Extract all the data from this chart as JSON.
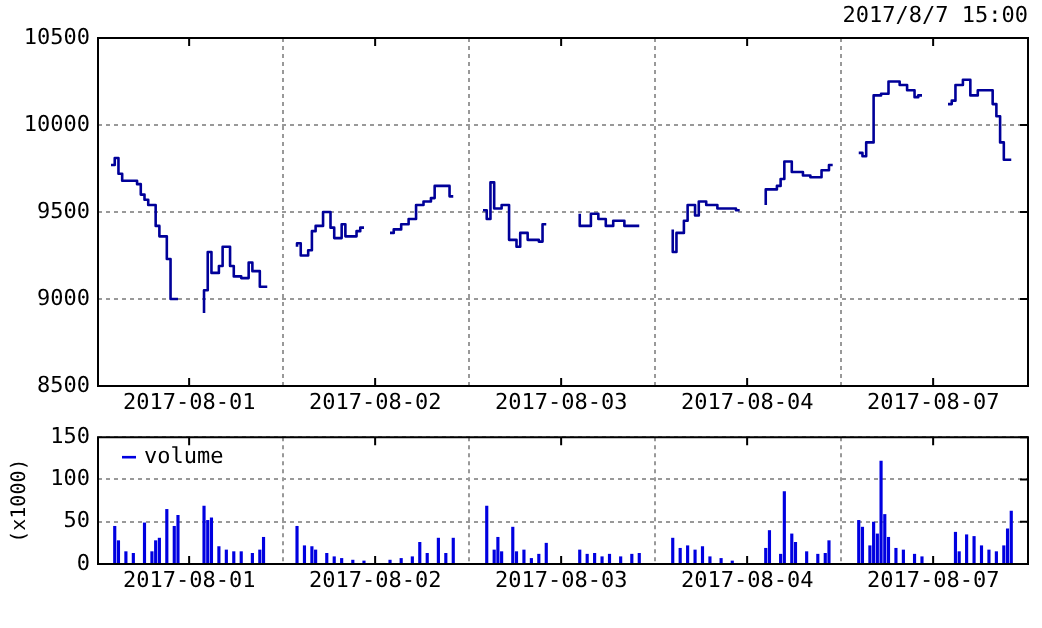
{
  "chart_data": [
    {
      "type": "step",
      "annotations": [
        "2017/8/7 15:00"
      ],
      "ylim": [
        8500,
        10500
      ],
      "yticks": [
        8500,
        9000,
        9500,
        10000,
        10500
      ],
      "grid": true,
      "marker": "none",
      "line_style": "solid",
      "categories": [
        null,
        null,
        null,
        null,
        null,
        null,
        null,
        null,
        null,
        null,
        null,
        null,
        null,
        null,
        null,
        null,
        null,
        null,
        null,
        null,
        null,
        null,
        null,
        null,
        "2017-08-01",
        null,
        null,
        null,
        null,
        null,
        null,
        null,
        null,
        null,
        null,
        null,
        null,
        null,
        null,
        null,
        null,
        null,
        null,
        null,
        null,
        null,
        null,
        null,
        null,
        null,
        null,
        null,
        null,
        null,
        null,
        null,
        null,
        null,
        null,
        null,
        null,
        null,
        null,
        null,
        null,
        null,
        null,
        null,
        null,
        null,
        null,
        null,
        null,
        null,
        "2017-08-02",
        null,
        null,
        null,
        null,
        null,
        null,
        null,
        null,
        null,
        null,
        null,
        null,
        null,
        null,
        null,
        null,
        null,
        null,
        null,
        null,
        null,
        null,
        null,
        null,
        null,
        null,
        null,
        null,
        null,
        null,
        null,
        null,
        null,
        null,
        null,
        null,
        null,
        null,
        null,
        null,
        null,
        null,
        null,
        null,
        null,
        null,
        null,
        null,
        null,
        "2017-08-03",
        null,
        null,
        null,
        null,
        null,
        null,
        null,
        null,
        null,
        null,
        null,
        null,
        null,
        null,
        null,
        null,
        null,
        null,
        null,
        null,
        null,
        null,
        null,
        null,
        null,
        null,
        null,
        null,
        null,
        null,
        null,
        null,
        null,
        null,
        null,
        null,
        null,
        null,
        null,
        null,
        null,
        null,
        null,
        null,
        null,
        null,
        null,
        null,
        null,
        "2017-08-04",
        null,
        null,
        null,
        null,
        null,
        null,
        null,
        null,
        null,
        null,
        null,
        null,
        null,
        null,
        null,
        null,
        null,
        null,
        null,
        null,
        null,
        null,
        null,
        null,
        null,
        null,
        null,
        null,
        null,
        null,
        null,
        null,
        null,
        null,
        null,
        null,
        null,
        null,
        null,
        null,
        null,
        null,
        null,
        null,
        null,
        null,
        null,
        null,
        null,
        "2017-08-07",
        null,
        null,
        null,
        null,
        null,
        null,
        null,
        null,
        null,
        null,
        null,
        null,
        null,
        null,
        null,
        null,
        null,
        null,
        null,
        null,
        null,
        null,
        null,
        null,
        null
      ],
      "series": [
        {
          "color": "#000099",
          "values": [
            null,
            null,
            null,
            9770,
            9770,
            9810,
            9720,
            9680,
            9680,
            9680,
            9680,
            9660,
            9600,
            9570,
            9540,
            9540,
            9420,
            9360,
            9360,
            9230,
            9000,
            9000,
            null,
            null,
            null,
            null,
            null,
            null,
            8920,
            9050,
            9270,
            9150,
            9150,
            9190,
            9300,
            9300,
            9190,
            9130,
            9130,
            9120,
            9120,
            9210,
            9160,
            9160,
            9070,
            9070,
            null,
            null,
            null,
            null,
            null,
            null,
            null,
            9300,
            9320,
            9250,
            9250,
            9280,
            9390,
            9420,
            9420,
            9500,
            9500,
            9410,
            9350,
            9350,
            9430,
            9360,
            9360,
            9360,
            9390,
            9410,
            null,
            null,
            null,
            null,
            null,
            null,
            9380,
            9380,
            9400,
            9400,
            9430,
            9430,
            9460,
            9460,
            9540,
            9540,
            9560,
            9560,
            9580,
            9650,
            9650,
            9650,
            9650,
            9590,
            null,
            null,
            null,
            null,
            null,
            null,
            null,
            9510,
            9510,
            9460,
            9670,
            9520,
            9520,
            9540,
            9540,
            9340,
            9340,
            9300,
            9380,
            9380,
            9340,
            9340,
            9340,
            9330,
            9430,
            null,
            null,
            null,
            null,
            null,
            null,
            null,
            null,
            9490,
            9420,
            9420,
            9420,
            9490,
            9490,
            9460,
            9460,
            9420,
            9420,
            9450,
            9450,
            9450,
            9420,
            9420,
            9420,
            9420,
            null,
            null,
            null,
            null,
            null,
            null,
            null,
            null,
            9400,
            9270,
            9380,
            9380,
            9450,
            9540,
            9540,
            9480,
            9560,
            9560,
            9540,
            9540,
            9540,
            9520,
            9520,
            9520,
            9520,
            9520,
            9510,
            null,
            null,
            null,
            null,
            null,
            null,
            9540,
            9630,
            9630,
            9630,
            9650,
            9690,
            9790,
            9790,
            9730,
            9730,
            9730,
            9710,
            9710,
            9700,
            9700,
            9700,
            9740,
            9740,
            9770,
            null,
            null,
            null,
            null,
            null,
            null,
            9840,
            9840,
            9820,
            9900,
            9900,
            10170,
            10170,
            10180,
            10180,
            10250,
            10250,
            10250,
            10230,
            10230,
            10200,
            10200,
            10160,
            10170,
            null,
            null,
            null,
            null,
            null,
            null,
            10120,
            10120,
            10140,
            10230,
            10230,
            10260,
            10260,
            10170,
            10170,
            10200,
            10200,
            10200,
            10200,
            10120,
            10050,
            9900,
            9800,
            9800,
            null,
            null,
            null,
            null
          ]
        }
      ]
    },
    {
      "type": "bar",
      "ylabel": "(x1000)",
      "legend": "top left",
      "ylim": [
        0,
        150
      ],
      "yticks": [
        0,
        50,
        100,
        150
      ],
      "grid": true,
      "categories": [
        null,
        null,
        null,
        null,
        null,
        null,
        null,
        null,
        null,
        null,
        null,
        null,
        null,
        null,
        null,
        null,
        null,
        null,
        null,
        null,
        null,
        null,
        null,
        null,
        "2017-08-01",
        null,
        null,
        null,
        null,
        null,
        null,
        null,
        null,
        null,
        null,
        null,
        null,
        null,
        null,
        null,
        null,
        null,
        null,
        null,
        null,
        null,
        null,
        null,
        null,
        null,
        null,
        null,
        null,
        null,
        null,
        null,
        null,
        null,
        null,
        null,
        null,
        null,
        null,
        null,
        null,
        null,
        null,
        null,
        null,
        null,
        null,
        null,
        null,
        null,
        "2017-08-02",
        null,
        null,
        null,
        null,
        null,
        null,
        null,
        null,
        null,
        null,
        null,
        null,
        null,
        null,
        null,
        null,
        null,
        null,
        null,
        null,
        null,
        null,
        null,
        null,
        null,
        null,
        null,
        null,
        null,
        null,
        null,
        null,
        null,
        null,
        null,
        null,
        null,
        null,
        null,
        null,
        null,
        null,
        null,
        null,
        null,
        null,
        null,
        null,
        null,
        "2017-08-03",
        null,
        null,
        null,
        null,
        null,
        null,
        null,
        null,
        null,
        null,
        null,
        null,
        null,
        null,
        null,
        null,
        null,
        null,
        null,
        null,
        null,
        null,
        null,
        null,
        null,
        null,
        null,
        null,
        null,
        null,
        null,
        null,
        null,
        null,
        null,
        null,
        null,
        null,
        null,
        null,
        null,
        null,
        null,
        null,
        null,
        null,
        null,
        null,
        null,
        "2017-08-04",
        null,
        null,
        null,
        null,
        null,
        null,
        null,
        null,
        null,
        null,
        null,
        null,
        null,
        null,
        null,
        null,
        null,
        null,
        null,
        null,
        null,
        null,
        null,
        null,
        null,
        null,
        null,
        null,
        null,
        null,
        null,
        null,
        null,
        null,
        null,
        null,
        null,
        null,
        null,
        null,
        null,
        null,
        null,
        null,
        null,
        null,
        null,
        null,
        null,
        "2017-08-07",
        null,
        null,
        null,
        null,
        null,
        null,
        null,
        null,
        null,
        null,
        null,
        null,
        null,
        null,
        null,
        null,
        null,
        null,
        null,
        null,
        null,
        null,
        null,
        null,
        null
      ],
      "series": [
        {
          "name": "volume",
          "color": "#0000e0",
          "values": [
            null,
            null,
            null,
            null,
            45,
            28,
            null,
            15,
            null,
            13,
            null,
            null,
            49,
            null,
            15,
            28,
            31,
            null,
            65,
            null,
            45,
            58,
            null,
            null,
            null,
            null,
            null,
            null,
            69,
            52,
            55,
            null,
            21,
            null,
            17,
            null,
            15,
            null,
            15,
            null,
            null,
            13,
            null,
            17,
            32,
            null,
            null,
            null,
            null,
            null,
            null,
            null,
            null,
            45,
            null,
            22,
            null,
            21,
            17,
            null,
            null,
            13,
            null,
            9,
            null,
            7,
            null,
            null,
            5,
            null,
            null,
            4,
            null,
            null,
            null,
            null,
            null,
            null,
            5,
            null,
            null,
            7,
            null,
            null,
            9,
            null,
            26,
            null,
            13,
            null,
            null,
            31,
            null,
            13,
            null,
            31,
            null,
            null,
            null,
            null,
            null,
            null,
            null,
            null,
            69,
            null,
            17,
            32,
            15,
            null,
            null,
            44,
            15,
            null,
            17,
            null,
            7,
            null,
            12,
            null,
            25,
            null,
            null,
            null,
            null,
            null,
            null,
            null,
            null,
            17,
            null,
            12,
            null,
            13,
            null,
            9,
            null,
            12,
            null,
            null,
            9,
            null,
            null,
            12,
            null,
            13,
            null,
            null,
            null,
            null,
            null,
            null,
            null,
            null,
            31,
            null,
            19,
            null,
            22,
            null,
            17,
            null,
            21,
            null,
            9,
            null,
            null,
            7,
            null,
            null,
            4,
            null,
            null,
            null,
            null,
            null,
            null,
            null,
            null,
            19,
            40,
            null,
            null,
            12,
            86,
            null,
            36,
            26,
            null,
            null,
            15,
            null,
            null,
            12,
            null,
            13,
            28,
            null,
            null,
            null,
            null,
            null,
            null,
            null,
            52,
            44,
            null,
            22,
            50,
            36,
            122,
            59,
            32,
            null,
            19,
            null,
            17,
            null,
            null,
            12,
            null,
            9,
            null,
            null,
            null,
            null,
            null,
            null,
            null,
            null,
            38,
            15,
            null,
            35,
            null,
            33,
            null,
            22,
            null,
            17,
            null,
            15,
            null,
            22,
            42,
            63,
            null,
            null,
            null,
            null
          ]
        }
      ]
    }
  ]
}
